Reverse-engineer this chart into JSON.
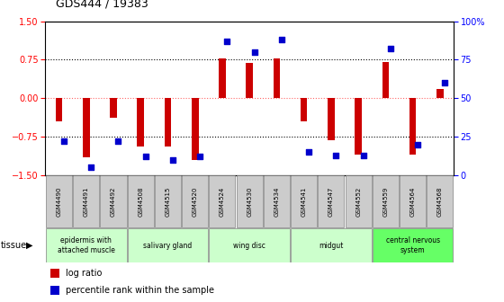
{
  "title": "GDS444 / 19383",
  "samples": [
    "GSM4490",
    "GSM4491",
    "GSM4492",
    "GSM4508",
    "GSM4515",
    "GSM4520",
    "GSM4524",
    "GSM4530",
    "GSM4534",
    "GSM4541",
    "GSM4547",
    "GSM4552",
    "GSM4559",
    "GSM4564",
    "GSM4568"
  ],
  "log_ratio": [
    -0.45,
    -1.15,
    -0.38,
    -0.95,
    -0.95,
    -1.2,
    0.77,
    0.68,
    0.77,
    -0.45,
    -0.82,
    -1.1,
    0.7,
    -1.1,
    0.18
  ],
  "percentile": [
    22,
    5,
    22,
    12,
    10,
    12,
    87,
    80,
    88,
    15,
    13,
    13,
    82,
    20,
    60
  ],
  "ylim_left": [
    -1.5,
    1.5
  ],
  "ylim_right": [
    0,
    100
  ],
  "yticks_left": [
    -1.5,
    -0.75,
    0,
    0.75,
    1.5
  ],
  "yticks_right": [
    0,
    25,
    50,
    75,
    100
  ],
  "hlines": [
    -0.75,
    0.0,
    0.75
  ],
  "tissue_groups": [
    {
      "label": "epidermis with\nattached muscle",
      "samples": [
        "GSM4490",
        "GSM4491",
        "GSM4492"
      ],
      "color": "#ccffcc"
    },
    {
      "label": "salivary gland",
      "samples": [
        "GSM4508",
        "GSM4515",
        "GSM4520"
      ],
      "color": "#ccffcc"
    },
    {
      "label": "wing disc",
      "samples": [
        "GSM4524",
        "GSM4530",
        "GSM4534"
      ],
      "color": "#ccffcc"
    },
    {
      "label": "midgut",
      "samples": [
        "GSM4541",
        "GSM4547",
        "GSM4552"
      ],
      "color": "#ccffcc"
    },
    {
      "label": "central nervous\nsystem",
      "samples": [
        "GSM4559",
        "GSM4564",
        "GSM4568"
      ],
      "color": "#66ff66"
    }
  ],
  "tissue_colors": [
    "#ccffcc",
    "#ccffcc",
    "#ccffcc",
    "#ccffcc",
    "#66ff66"
  ],
  "bar_color": "#cc0000",
  "dot_color": "#0000cc",
  "zero_line_color": "#ff6666",
  "bg_color": "#ffffff",
  "sample_bg_color": "#cccccc",
  "legend_items": [
    "log ratio",
    "percentile rank within the sample"
  ]
}
